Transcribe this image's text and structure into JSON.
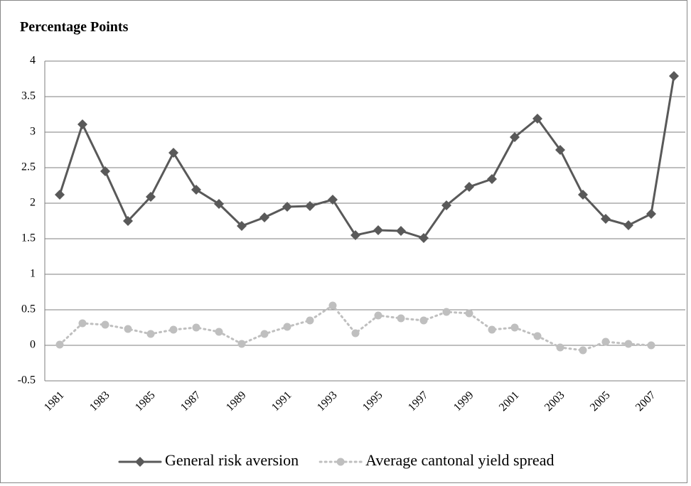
{
  "chart_data": {
    "type": "line",
    "title": "Percentage Points",
    "categories": [
      "1981",
      null,
      "1983",
      null,
      "1985",
      null,
      "1987",
      null,
      "1989",
      null,
      "1991",
      null,
      "1993",
      null,
      "1995",
      null,
      "1997",
      null,
      "1999",
      null,
      "2001",
      null,
      "2003",
      null,
      "2005",
      null,
      "2007",
      null
    ],
    "series": [
      {
        "name": "General risk aversion",
        "color": "#595959",
        "marker": "diamond",
        "dash": "solid",
        "values": [
          2.12,
          3.11,
          2.45,
          1.75,
          2.09,
          2.71,
          2.19,
          1.99,
          1.68,
          1.8,
          1.95,
          1.96,
          2.05,
          1.55,
          1.62,
          1.61,
          1.51,
          1.97,
          2.23,
          2.34,
          2.93,
          3.19,
          2.75,
          2.12,
          1.78,
          1.69,
          1.85,
          3.79
        ]
      },
      {
        "name": "Average cantonal yield spread",
        "color": "#bfbfbf",
        "marker": "circle",
        "dash": "dotted",
        "values": [
          0.01,
          0.31,
          0.29,
          0.23,
          0.16,
          0.22,
          0.25,
          0.19,
          0.02,
          0.16,
          0.26,
          0.35,
          0.56,
          0.17,
          0.42,
          0.38,
          0.35,
          0.47,
          0.45,
          0.22,
          0.25,
          0.13,
          -0.03,
          -0.07,
          0.05,
          0.02,
          0.0,
          null
        ]
      }
    ],
    "ylim": [
      -0.5,
      4
    ],
    "yticks": [
      -0.5,
      0,
      0.5,
      1,
      1.5,
      2,
      2.5,
      3,
      3.5,
      4
    ],
    "grid": true,
    "legend": "bottom"
  }
}
